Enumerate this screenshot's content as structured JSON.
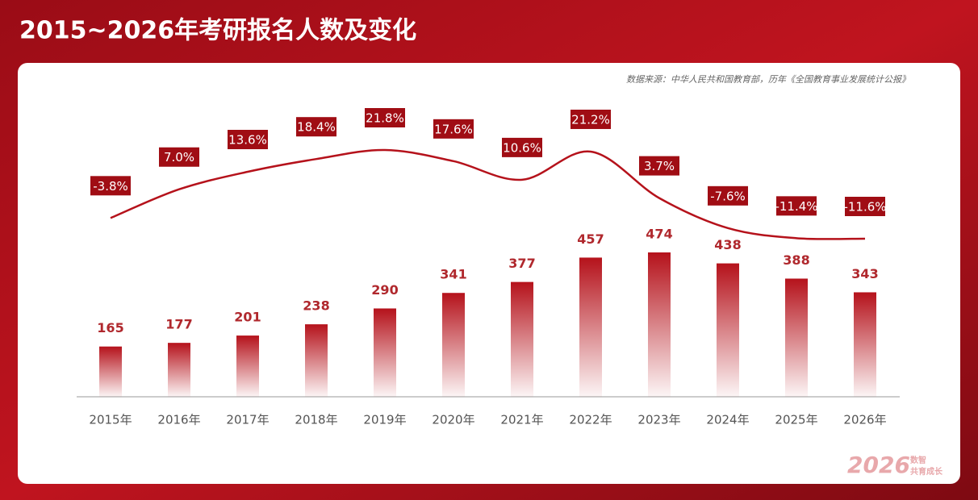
{
  "chart_data": {
    "type": "combo",
    "title": "2015~2026年考研报名人数及变化",
    "source": "数据来源：中华人民共和国教育部，历年《全国教育事业发展统计公报》",
    "watermark": {
      "year": "2026",
      "lines": [
        "数智",
        "共育成长"
      ]
    },
    "categories": [
      "2015年",
      "2016年",
      "2017年",
      "2018年",
      "2019年",
      "2020年",
      "2021年",
      "2022年",
      "2023年",
      "2024年",
      "2025年",
      "2026年"
    ],
    "series": [
      {
        "type": "bar",
        "color": "#b5121b",
        "values": [
          165,
          177,
          201,
          238,
          290,
          341,
          377,
          457,
          474,
          438,
          388,
          343
        ]
      },
      {
        "type": "line",
        "color": "#b5121b",
        "label_color": "#a00d14",
        "values": [
          -3.8,
          7.0,
          13.6,
          18.4,
          21.8,
          17.6,
          10.6,
          21.2,
          3.7,
          -7.6,
          -11.4,
          -11.6
        ],
        "value_labels": [
          "-3.8%",
          "7.0%",
          "13.6%",
          "18.4%",
          "21.8%",
          "17.6%",
          "10.6%",
          "21.2%",
          "3.7%",
          "-7.6%",
          "-11.4%",
          "-11.6%"
        ]
      }
    ]
  }
}
